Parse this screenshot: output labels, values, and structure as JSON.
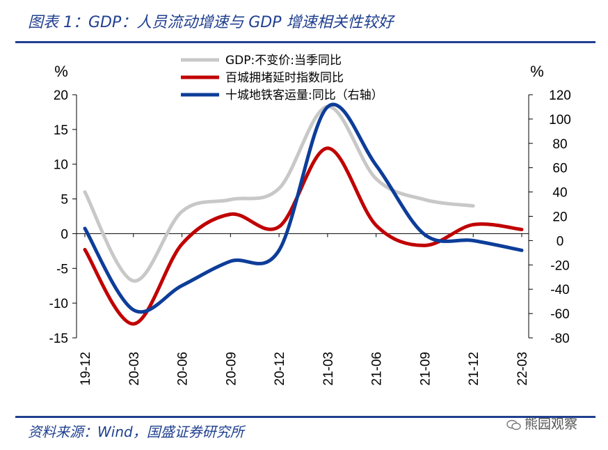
{
  "header": {
    "title": "图表 1：GDP：人员流动增速与 GDP 增速相关性较好"
  },
  "footer": {
    "source": "资料来源：Wind，国盛证券研究所",
    "watermark": "熊园观察"
  },
  "colors": {
    "gdp": "#c8c8c8",
    "congestion": "#c00000",
    "subway": "#0d3d99",
    "accent": "#1f3f8f"
  },
  "chart_data": {
    "type": "line",
    "title": "GDP：人员流动增速与 GDP 增速相关性较好",
    "x": [
      "19-12",
      "20-03",
      "20-06",
      "20-09",
      "20-12",
      "21-03",
      "21-06",
      "21-09",
      "21-12",
      "22-03"
    ],
    "left_axis": {
      "unit": "%",
      "ylim": [
        -15,
        20
      ],
      "ticks": [
        20,
        15,
        10,
        5,
        0,
        -5,
        -10,
        -15
      ]
    },
    "right_axis": {
      "unit": "%",
      "ylim": [
        -80,
        120
      ],
      "ticks": [
        120,
        100,
        80,
        60,
        40,
        20,
        0,
        -20,
        -40,
        -60,
        -80
      ]
    },
    "series": [
      {
        "name": "GDP:不变价:当季同比",
        "axis": "left",
        "color_key": "gdp",
        "values": [
          6.0,
          -6.8,
          3.2,
          4.9,
          6.5,
          18.3,
          7.9,
          4.9,
          4.0,
          null
        ]
      },
      {
        "name": "百城拥堵延时指数同比",
        "axis": "left",
        "color_key": "congestion",
        "values": [
          -2.3,
          -13.0,
          -1.5,
          2.8,
          1.0,
          12.3,
          1.2,
          -1.7,
          1.3,
          0.6
        ]
      },
      {
        "name": "十城地铁客运量:同比（右轴）",
        "axis": "right",
        "color_key": "subway",
        "values": [
          10,
          -57,
          -37,
          -17,
          -8,
          110,
          62,
          5,
          0,
          -8
        ]
      }
    ],
    "legend": [
      "GDP:不变价:当季同比",
      "百城拥堵延时指数同比",
      "十城地铁客运量:同比（右轴）"
    ],
    "legend_position": "top-center",
    "grid": false
  }
}
